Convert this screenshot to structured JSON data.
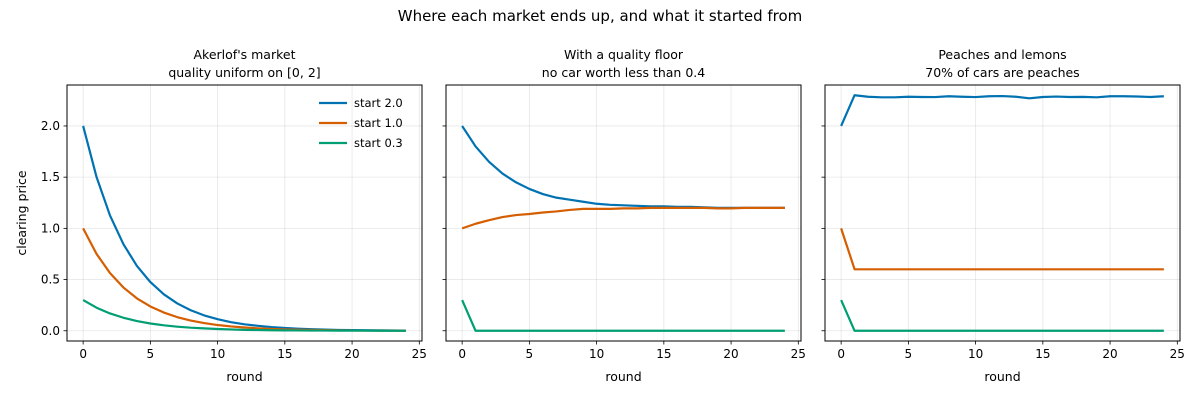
{
  "figure": {
    "title": "Where each market ends up, and what it started from"
  },
  "colors": {
    "start_2_0": "#0072b2",
    "start_1_0": "#d55e00",
    "start_0_3": "#009e73"
  },
  "chart_data": [
    {
      "type": "line",
      "title": "Akerlof's market",
      "subtitle": "quality uniform on [0, 2]",
      "xlabel": "round",
      "ylabel": "clearing price",
      "xlim": [
        -1.2,
        25.2
      ],
      "ylim": [
        -0.1,
        2.4
      ],
      "xticks": [
        "0",
        "5",
        "10",
        "15",
        "20",
        "25"
      ],
      "yticks": [
        "0.0",
        "0.5",
        "1.0",
        "1.5",
        "2.0"
      ],
      "grid": true,
      "legend": {
        "placement": "top-right",
        "entries": [
          "start 2.0",
          "start 1.0",
          "start 0.3"
        ]
      },
      "x": [
        0,
        1,
        2,
        3,
        4,
        5,
        6,
        7,
        8,
        9,
        10,
        11,
        12,
        13,
        14,
        15,
        16,
        17,
        18,
        19,
        20,
        21,
        22,
        23,
        24
      ],
      "series": [
        {
          "name": "start 2.0",
          "color": "#0072b2",
          "values": [
            2.0,
            1.5,
            1.125,
            0.844,
            0.633,
            0.475,
            0.356,
            0.267,
            0.2,
            0.15,
            0.113,
            0.084,
            0.063,
            0.048,
            0.036,
            0.027,
            0.02,
            0.015,
            0.011,
            0.008,
            0.006,
            0.005,
            0.004,
            0.003,
            0.002
          ]
        },
        {
          "name": "start 1.0",
          "color": "#d55e00",
          "values": [
            1.0,
            0.75,
            0.563,
            0.422,
            0.316,
            0.237,
            0.178,
            0.133,
            0.1,
            0.075,
            0.056,
            0.042,
            0.032,
            0.024,
            0.018,
            0.013,
            0.01,
            0.008,
            0.006,
            0.004,
            0.003,
            0.002,
            0.002,
            0.001,
            0.001
          ]
        },
        {
          "name": "start 0.3",
          "color": "#009e73",
          "values": [
            0.3,
            0.225,
            0.169,
            0.127,
            0.095,
            0.071,
            0.053,
            0.04,
            0.03,
            0.023,
            0.017,
            0.013,
            0.009,
            0.007,
            0.005,
            0.004,
            0.003,
            0.002,
            0.002,
            0.001,
            0.001,
            0.001,
            0.0,
            0.0,
            0.0
          ]
        }
      ]
    },
    {
      "type": "line",
      "title": "With a quality floor",
      "subtitle": "no car worth less than 0.4",
      "xlabel": "round",
      "ylabel": "",
      "xlim": [
        -1.2,
        25.2
      ],
      "ylim": [
        -0.1,
        2.4
      ],
      "xticks": [
        "0",
        "5",
        "10",
        "15",
        "20",
        "25"
      ],
      "yticks": [],
      "grid": true,
      "x": [
        0,
        1,
        2,
        3,
        4,
        5,
        6,
        7,
        8,
        9,
        10,
        11,
        12,
        13,
        14,
        15,
        16,
        17,
        18,
        19,
        20,
        21,
        22,
        23,
        24
      ],
      "series": [
        {
          "color": "#0072b2",
          "values": [
            2.0,
            1.8,
            1.65,
            1.535,
            1.45,
            1.385,
            1.335,
            1.3,
            1.28,
            1.26,
            1.24,
            1.23,
            1.225,
            1.22,
            1.215,
            1.215,
            1.21,
            1.21,
            1.205,
            1.2,
            1.2,
            1.2,
            1.2,
            1.2,
            1.2
          ]
        },
        {
          "color": "#d55e00",
          "values": [
            1.0,
            1.045,
            1.08,
            1.11,
            1.13,
            1.14,
            1.155,
            1.165,
            1.18,
            1.19,
            1.19,
            1.19,
            1.195,
            1.195,
            1.2,
            1.2,
            1.2,
            1.2,
            1.2,
            1.195,
            1.195,
            1.2,
            1.2,
            1.2,
            1.2
          ]
        },
        {
          "color": "#009e73",
          "values": [
            0.3,
            0.0,
            0.0,
            0.0,
            0.0,
            0.0,
            0.0,
            0.0,
            0.0,
            0.0,
            0.0,
            0.0,
            0.0,
            0.0,
            0.0,
            0.0,
            0.0,
            0.0,
            0.0,
            0.0,
            0.0,
            0.0,
            0.0,
            0.0,
            0.0
          ]
        }
      ]
    },
    {
      "type": "line",
      "title": "Peaches and lemons",
      "subtitle": "70% of cars are peaches",
      "xlabel": "round",
      "ylabel": "",
      "xlim": [
        -1.2,
        25.2
      ],
      "ylim": [
        -0.1,
        2.4
      ],
      "xticks": [
        "0",
        "5",
        "10",
        "15",
        "20",
        "25"
      ],
      "yticks": [],
      "grid": true,
      "x": [
        0,
        1,
        2,
        3,
        4,
        5,
        6,
        7,
        8,
        9,
        10,
        11,
        12,
        13,
        14,
        15,
        16,
        17,
        18,
        19,
        20,
        21,
        22,
        23,
        24
      ],
      "series": [
        {
          "color": "#0072b2",
          "values": [
            2.0,
            2.3,
            2.285,
            2.28,
            2.28,
            2.285,
            2.283,
            2.282,
            2.29,
            2.285,
            2.282,
            2.29,
            2.292,
            2.285,
            2.27,
            2.283,
            2.287,
            2.283,
            2.284,
            2.28,
            2.29,
            2.29,
            2.288,
            2.283,
            2.29
          ]
        },
        {
          "color": "#d55e00",
          "values": [
            1.0,
            0.6,
            0.6,
            0.6,
            0.6,
            0.6,
            0.6,
            0.6,
            0.6,
            0.6,
            0.6,
            0.6,
            0.6,
            0.6,
            0.6,
            0.6,
            0.6,
            0.6,
            0.6,
            0.6,
            0.6,
            0.6,
            0.6,
            0.6,
            0.6
          ]
        },
        {
          "color": "#009e73",
          "values": [
            0.3,
            0.0,
            0.0,
            0.0,
            0.0,
            0.0,
            0.0,
            0.0,
            0.0,
            0.0,
            0.0,
            0.0,
            0.0,
            0.0,
            0.0,
            0.0,
            0.0,
            0.0,
            0.0,
            0.0,
            0.0,
            0.0,
            0.0,
            0.0,
            0.0
          ]
        }
      ]
    }
  ]
}
